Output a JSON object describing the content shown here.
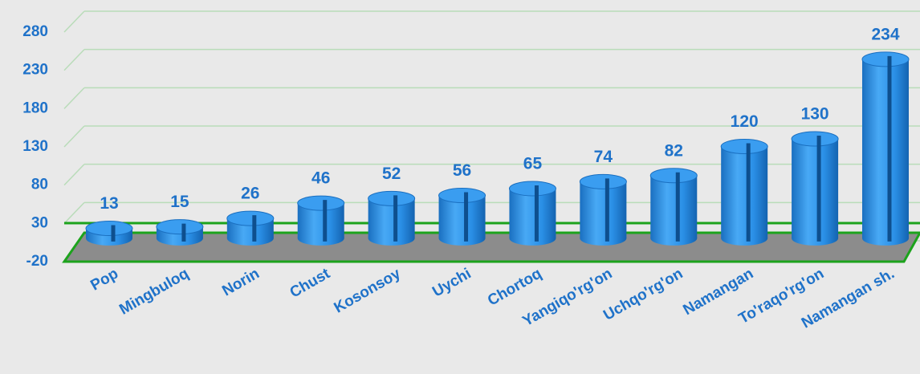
{
  "chart_data": {
    "type": "bar",
    "categories": [
      "Pop",
      "Mingbuloq",
      "Norin",
      "Chust",
      "Kosonsoy",
      "Uychi",
      "Chortoq",
      "Yangiqo'rg'on",
      "Uchqo'rg'on",
      "Namangan",
      "To'raqo'rg'on",
      "Namangan sh."
    ],
    "values": [
      13,
      15,
      26,
      46,
      52,
      56,
      65,
      74,
      82,
      120,
      130,
      234
    ],
    "color": "#2a8fe6",
    "ylim": [
      -20,
      280
    ],
    "yticks": [
      -20,
      30,
      80,
      130,
      180,
      230,
      280
    ],
    "grid": true
  }
}
